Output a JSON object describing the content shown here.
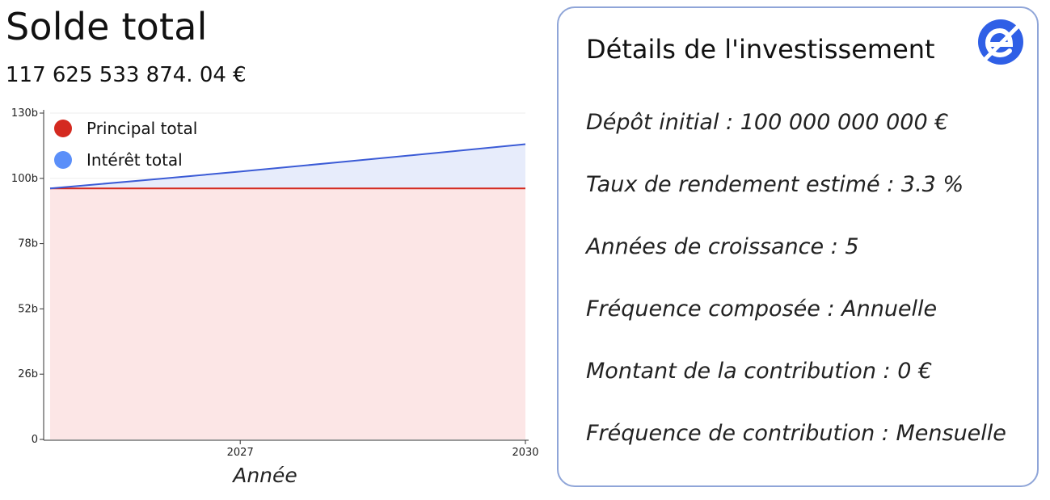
{
  "header": {
    "title": "Solde total",
    "total_balance": "117 625 533 874. 04 €"
  },
  "details": {
    "title": "Détails de l'investissement",
    "logo_icon": "brand-e-logo-icon",
    "items": [
      "Dépôt initial : 100 000 000 000 €",
      "Taux de rendement estimé : 3.3 %",
      "Années de croissance : 5",
      "Fréquence composée : Annuelle",
      "Montant de la contribution : 0 €",
      "Fréquence de contribution : Mensuelle"
    ]
  },
  "colors": {
    "principal": "#d42a20",
    "interest": "#5b8ff9",
    "principal_fill": "#fce6e6",
    "interest_fill": "#e7ecfb",
    "interest_line": "#3b5bd6",
    "card_border": "#8fa5d8"
  },
  "chart_data": {
    "type": "area",
    "x": [
      2025,
      2026,
      2027,
      2028,
      2029,
      2030
    ],
    "xticks": [
      "2027",
      "2030"
    ],
    "xlabel": "Année",
    "ylabel": "",
    "ylim": [
      0,
      130
    ],
    "yticks": [
      "0",
      "26b",
      "52b",
      "78b",
      "100b",
      "130b"
    ],
    "legend_position": "top-left",
    "grid": true,
    "series": [
      {
        "name": "Principal total",
        "values": [
          100,
          100,
          100,
          100,
          100,
          100
        ]
      },
      {
        "name": "Intérêt total",
        "values": [
          0,
          3.3,
          6.7,
          10.3,
          13.9,
          17.6
        ]
      }
    ]
  }
}
